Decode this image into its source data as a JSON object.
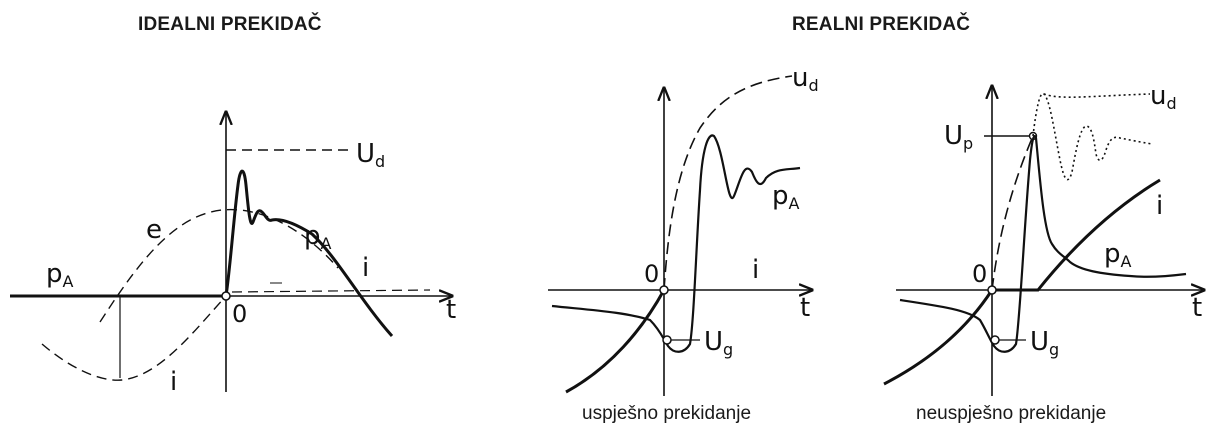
{
  "titles": {
    "ideal": "IDEALNI PREKIDAČ",
    "real": "REALNI PREKIDAČ"
  },
  "captions": {
    "success": "uspješno prekidanje",
    "failure": "neuspješno prekidanje"
  },
  "labels": {
    "ideal": {
      "ud": "U",
      "ud_sub": "d",
      "e": "e",
      "pa_left": "p",
      "pa_left_sub": "A",
      "pa_right": "p",
      "pa_right_sub": "A",
      "i_right": "i",
      "i_bottom": "i",
      "origin": "0",
      "t": "t"
    },
    "success": {
      "ud": "u",
      "ud_sub": "d",
      "pa": "p",
      "pa_sub": "A",
      "i": "i",
      "origin": "0",
      "t": "t",
      "ug": "U",
      "ug_sub": "g"
    },
    "failure": {
      "up": "U",
      "up_sub": "p",
      "ud": "u",
      "ud_sub": "d",
      "i": "i",
      "pa": "p",
      "pa_sub": "A",
      "origin": "0",
      "t": "t",
      "ug": "U",
      "ug_sub": "g"
    }
  }
}
